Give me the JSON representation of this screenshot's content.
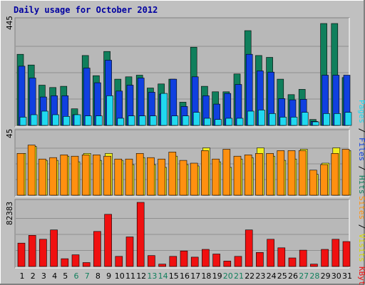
{
  "chart_data": [
    {
      "type": "bar",
      "title": "Daily usage for October 2012",
      "ymax_label": "445",
      "legend": [
        "Pages",
        "Files",
        "Hits"
      ],
      "colors": {
        "hits": "#107f5c",
        "files": "#1040e0",
        "pages": "#20d8f0"
      },
      "categories": [
        "1",
        "2",
        "3",
        "4",
        "5",
        "6",
        "7",
        "8",
        "9",
        "10",
        "11",
        "12",
        "13",
        "14",
        "15",
        "16",
        "17",
        "18",
        "19",
        "20",
        "21",
        "22",
        "23",
        "24",
        "25",
        "26",
        "27",
        "28",
        "29",
        "30",
        "31"
      ],
      "weekend_days": [
        "6",
        "7",
        "13",
        "14",
        "20",
        "21",
        "27",
        "28"
      ],
      "ylim": [
        0,
        445
      ],
      "series": [
        {
          "name": "Hits",
          "key": "hits",
          "values": [
            300,
            255,
            170,
            160,
            165,
            70,
            295,
            210,
            312,
            195,
            205,
            212,
            158,
            175,
            195,
            98,
            330,
            165,
            142,
            142,
            217,
            400,
            295,
            287,
            195,
            130,
            152,
            25,
            430,
            430,
            202
          ]
        },
        {
          "name": "Files",
          "key": "files",
          "values": [
            250,
            200,
            120,
            125,
            125,
            45,
            242,
            180,
            275,
            145,
            170,
            200,
            140,
            132,
            195,
            80,
            205,
            125,
            90,
            135,
            173,
            300,
            230,
            225,
            113,
            108,
            110,
            17,
            212,
            212,
            212
          ]
        },
        {
          "name": "Pages",
          "key": "pages",
          "values": [
            35,
            45,
            60,
            45,
            38,
            45,
            40,
            40,
            125,
            30,
            40,
            40,
            40,
            135,
            40,
            40,
            55,
            30,
            25,
            30,
            30,
            60,
            65,
            50,
            35,
            35,
            55,
            15,
            50,
            50,
            55
          ]
        }
      ]
    },
    {
      "type": "bar",
      "ymax_label": "45",
      "legend": [
        "Sites",
        "Visits"
      ],
      "colors": {
        "visits": "#f0f020",
        "sites": "#ff9010"
      },
      "ylim": [
        0,
        45
      ],
      "series": [
        {
          "name": "Visits",
          "key": "visits",
          "values": [
            30,
            35,
            25,
            25,
            28,
            24,
            30,
            25,
            30,
            25,
            22,
            27,
            22,
            20,
            28,
            22,
            21,
            34,
            24,
            20,
            26,
            27,
            34,
            28,
            25,
            26,
            33,
            15,
            23,
            34,
            32
          ]
        },
        {
          "name": "Sites",
          "key": "sites",
          "values": [
            30,
            36,
            26,
            27,
            29,
            28,
            29,
            29,
            28,
            26,
            26,
            30,
            27,
            26,
            31,
            25,
            23,
            32,
            26,
            33,
            28,
            29,
            30,
            30,
            32,
            32,
            32,
            18,
            22,
            30,
            33
          ]
        }
      ]
    },
    {
      "type": "bar",
      "ymax_label": "82383",
      "legend": [
        "KBytes"
      ],
      "colors": {
        "kbytes": "#f01010"
      },
      "ylim": [
        0,
        82383
      ],
      "series": [
        {
          "name": "KBytes",
          "key": "kbytes",
          "values": [
            30000,
            40000,
            35000,
            47000,
            10000,
            15000,
            5000,
            45000,
            67000,
            13000,
            38000,
            82383,
            14000,
            3000,
            13000,
            20000,
            12000,
            22000,
            16000,
            7000,
            13000,
            47000,
            18000,
            35000,
            24000,
            11000,
            21000,
            3000,
            22000,
            35000,
            32000
          ]
        }
      ]
    }
  ]
}
